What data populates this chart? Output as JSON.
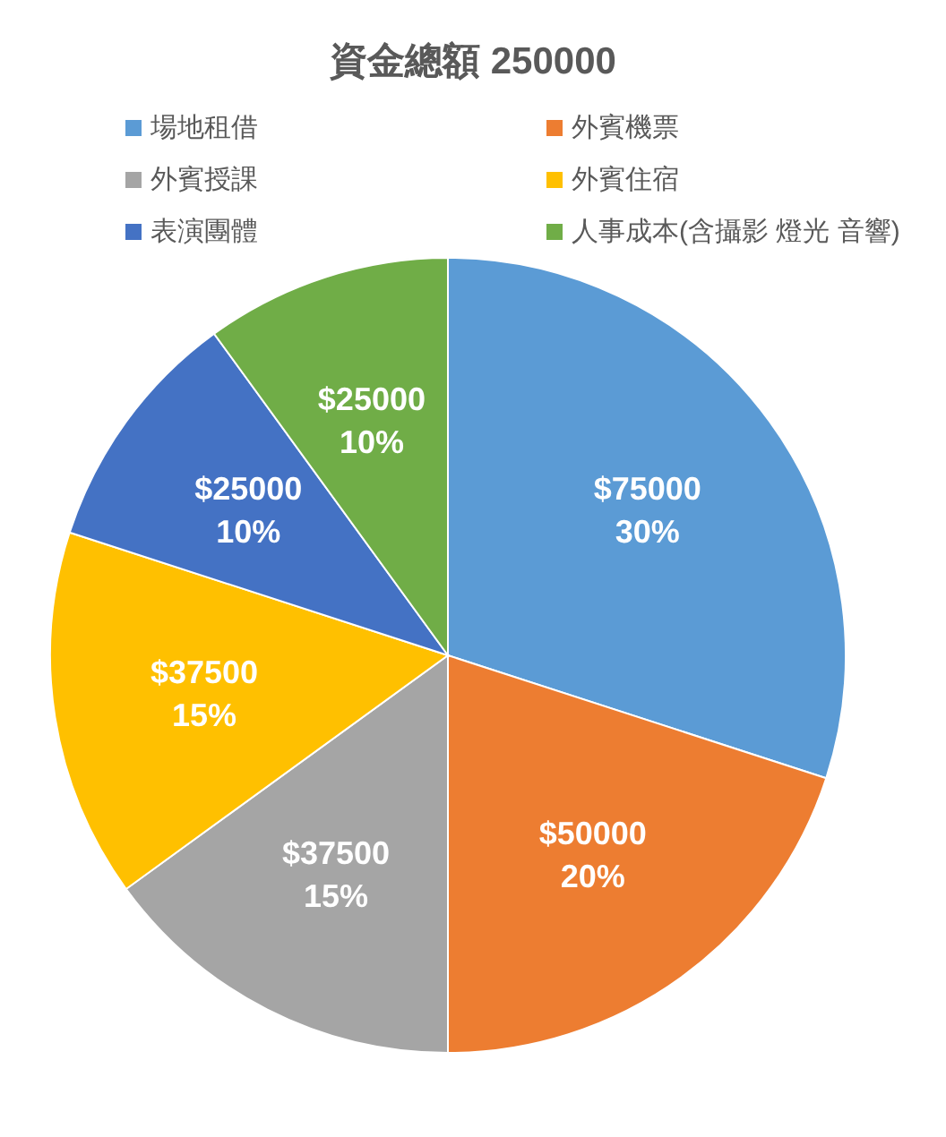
{
  "chart_data": {
    "type": "pie",
    "title": "資金總額 250000",
    "categories": [
      "場地租借",
      "外賓機票",
      "外賓授課",
      "外賓住宿",
      "表演團體",
      "人事成本(含攝影 燈光 音響)"
    ],
    "values": [
      75000,
      50000,
      37500,
      37500,
      25000,
      25000
    ],
    "colors": [
      "#5b9bd5",
      "#ed7d31",
      "#a5a5a5",
      "#ffc000",
      "#4472c4",
      "#70ad47"
    ],
    "value_labels": [
      "$75000\n30%",
      "$50000\n20%",
      "$37500\n15%",
      "$37500\n15%",
      "$25000\n10%",
      "$25000\n10%"
    ],
    "legend": "top"
  }
}
